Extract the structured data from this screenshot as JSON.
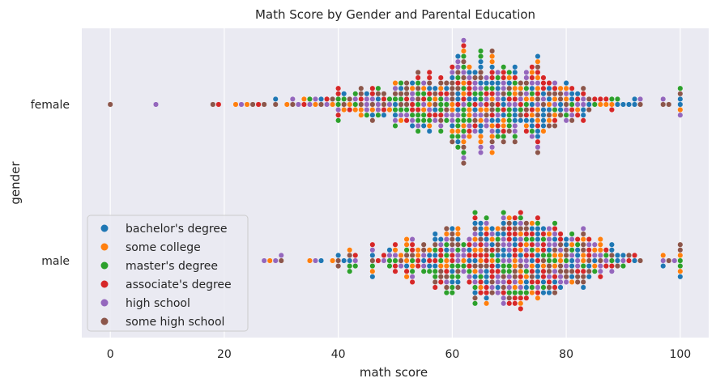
{
  "chart_data": {
    "type": "scatter",
    "subtype": "swarm",
    "title": "Math Score by Gender and Parental Education",
    "xlabel": "math score",
    "ylabel": "gender",
    "xlim": [
      -5,
      105
    ],
    "xticks": [
      0,
      20,
      40,
      60,
      80,
      100
    ],
    "categories": [
      "female",
      "male"
    ],
    "grid": true,
    "background": "#eaeaf2",
    "legend_position": "lower-left",
    "series": [
      {
        "name": "bachelor's degree",
        "color": "#1f77b4"
      },
      {
        "name": "some college",
        "color": "#ff7f0e"
      },
      {
        "name": "master's degree",
        "color": "#2ca02c"
      },
      {
        "name": "associate's degree",
        "color": "#d62728"
      },
      {
        "name": "high school",
        "color": "#9467bd"
      },
      {
        "name": "some high school",
        "color": "#8c564b"
      }
    ],
    "points": {
      "female": [
        {
          "x": 0,
          "s": 5
        },
        {
          "x": 8,
          "s": 4
        },
        {
          "x": 18,
          "s": 5
        },
        {
          "x": 19,
          "s": 3
        },
        {
          "x": 22,
          "s": 1
        },
        {
          "x": 23,
          "s": 4
        },
        {
          "x": 24,
          "s": 1
        },
        {
          "x": 25,
          "s": 5
        },
        {
          "x": 26,
          "s": 3
        },
        {
          "x": 27,
          "s": 5
        },
        {
          "x": 29,
          "s": 5
        },
        {
          "x": 29,
          "s": 0
        },
        {
          "x": 31,
          "s": 1
        },
        {
          "x": 32,
          "s": 5
        },
        {
          "x": 32,
          "s": 4
        },
        {
          "x": 33,
          "s": 4
        },
        {
          "x": 34,
          "s": 3
        },
        {
          "x": 34,
          "s": 1
        },
        {
          "x": 35,
          "s": 4
        },
        {
          "x": 35,
          "s": 2
        },
        {
          "x": 36,
          "s": 1
        },
        {
          "x": 36,
          "s": 4
        },
        {
          "x": 37,
          "s": 5
        },
        {
          "x": 37,
          "s": 0
        },
        {
          "x": 38,
          "s": 4
        },
        {
          "x": 38,
          "s": 3
        },
        {
          "x": 39,
          "s": 1
        },
        {
          "x": 39,
          "s": 5
        }
      ],
      "male": [
        {
          "x": 27,
          "s": 4
        },
        {
          "x": 28,
          "s": 1
        },
        {
          "x": 29,
          "s": 4
        },
        {
          "x": 30,
          "s": 5
        },
        {
          "x": 30,
          "s": 4
        },
        {
          "x": 35,
          "s": 1
        },
        {
          "x": 36,
          "s": 4
        },
        {
          "x": 37,
          "s": 0
        },
        {
          "x": 39,
          "s": 1
        },
        {
          "x": 40,
          "s": 5
        },
        {
          "x": 40,
          "s": 0
        }
      ]
    },
    "dense_regions": {
      "female": {
        "center": 65,
        "spread": 12,
        "min": 40,
        "max": 100
      },
      "male": {
        "center": 68,
        "spread": 12,
        "min": 40,
        "max": 100
      }
    }
  }
}
